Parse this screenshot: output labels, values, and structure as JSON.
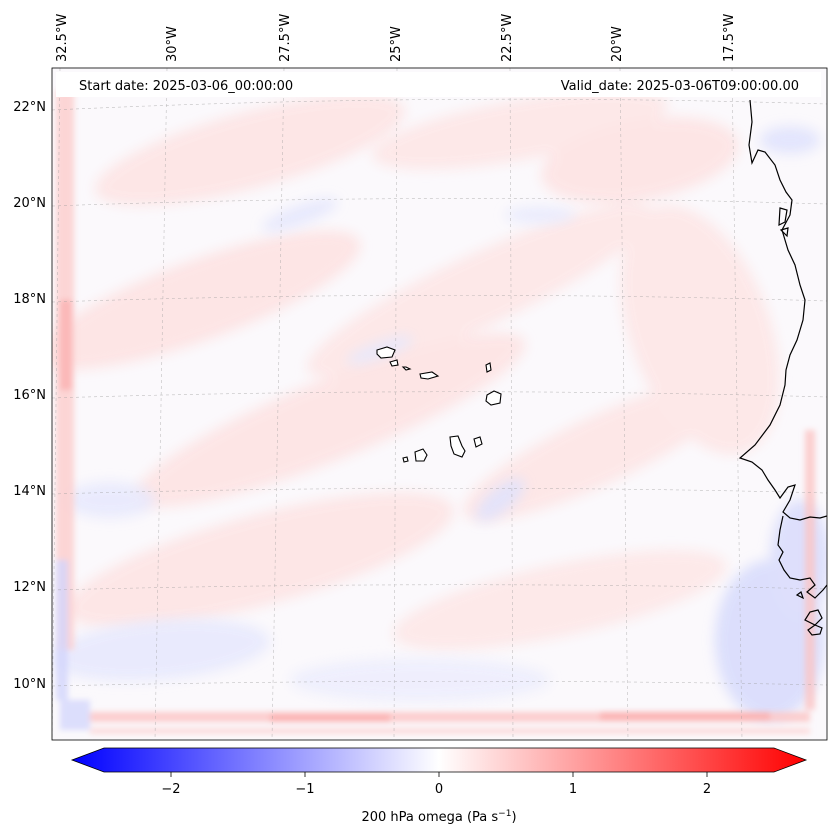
{
  "figure": {
    "start_date_label": "Start date: 2025-03-06_00:00:00",
    "valid_date_label": "Valid_date: 2025-03-06T09:00:00.00"
  },
  "axes": {
    "lon_ticks": [
      "32.5°W",
      "30°W",
      "27.5°W",
      "25°W",
      "22.5°W",
      "20°W",
      "17.5°W"
    ],
    "lat_ticks": [
      "22°N",
      "20°N",
      "18°N",
      "16°N",
      "14°N",
      "12°N",
      "10°N"
    ]
  },
  "colorbar": {
    "label": "200 hPa omega (Pa s",
    "label_exponent": "−1",
    "label_close": ")",
    "tick_labels": [
      "−2",
      "−1",
      "0",
      "1",
      "2"
    ],
    "tick_values": [
      -2,
      -1,
      0,
      1,
      2
    ],
    "range": [
      -2.5,
      2.5
    ],
    "color_low": "#0000ff",
    "color_mid": "#ffffff",
    "color_high": "#ff0000"
  },
  "field": {
    "variable": "200 hPa omega",
    "dominant_sign": "weakly positive (pale red) over most of the domain",
    "features": [
      "red bands along southern boundary",
      "red band along western boundary",
      "blue patches along West African coast"
    ]
  }
}
